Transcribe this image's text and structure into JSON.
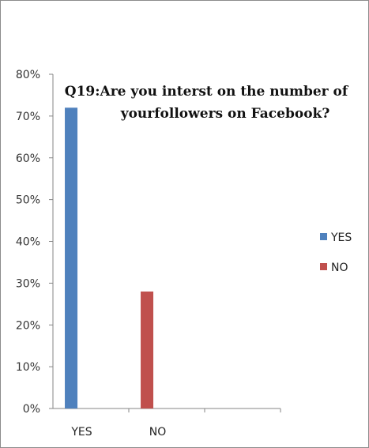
{
  "chart_data": {
    "type": "bar",
    "title": "Q19:Are you interst on the number of yourfollowers on Facebook?",
    "title_lines": [
      "Q19:Are you interst on the number of",
      "yourfollowers on Facebook?"
    ],
    "categories": [
      "YES",
      "NO"
    ],
    "series": [
      {
        "name": "YES",
        "color": "#4f81bd",
        "category": "YES",
        "value": 0.72
      },
      {
        "name": "NO",
        "color": "#c0504d",
        "category": "NO",
        "value": 0.28
      }
    ],
    "yticks": [
      "0%",
      "10%",
      "20%",
      "30%",
      "40%",
      "50%",
      "60%",
      "70%",
      "80%"
    ],
    "ylim": [
      0,
      0.8
    ],
    "xlabel": "",
    "ylabel": "",
    "grid": false,
    "legend_position": "right"
  }
}
